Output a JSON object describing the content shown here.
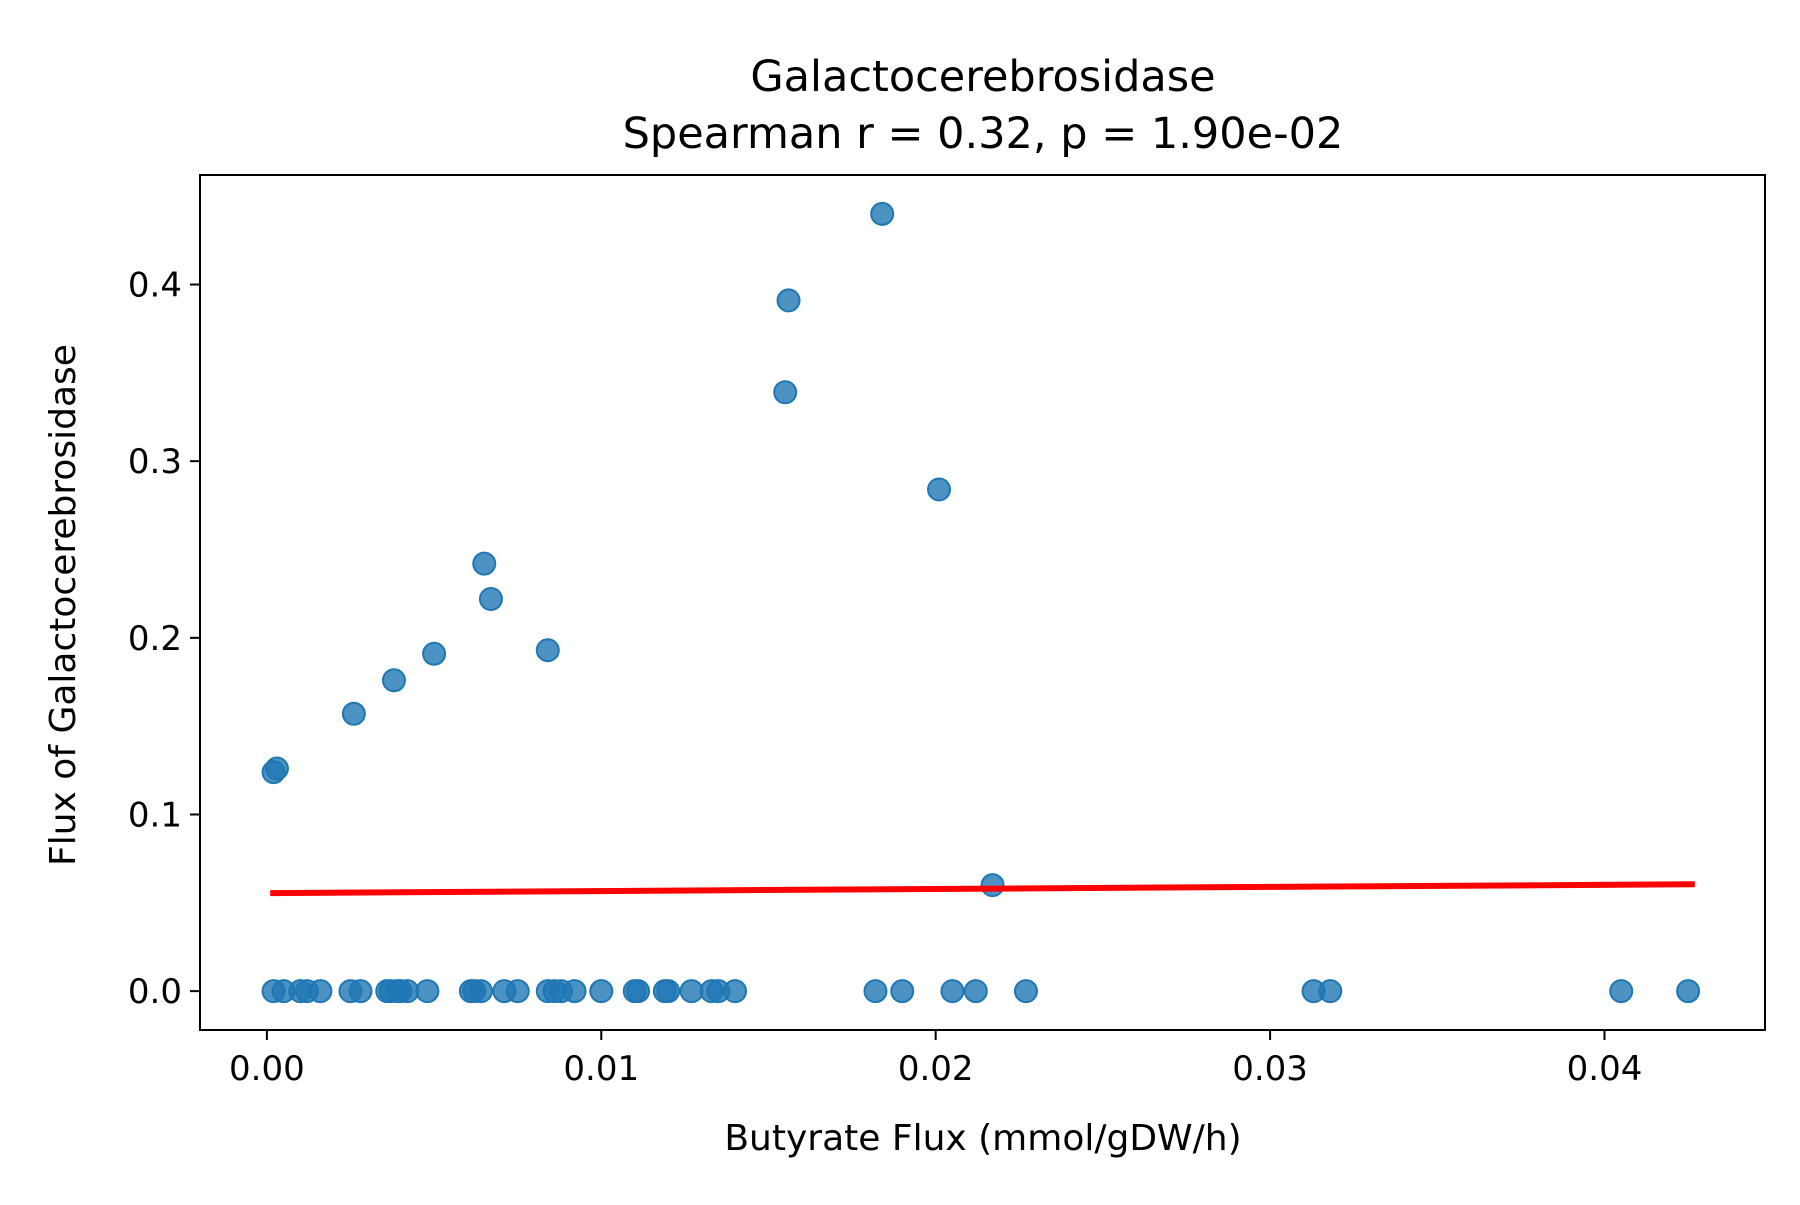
{
  "chart_data": {
    "type": "scatter",
    "title": "Galactocerebrosidase",
    "subtitle": "Spearman r = 0.32, p = 1.90e-02",
    "xlabel": "Butyrate Flux (mmol/gDW/h)",
    "ylabel": "Flux of Galactocerebrosidase",
    "xlim": [
      -0.002,
      0.0448
    ],
    "ylim": [
      -0.022,
      0.462
    ],
    "xticks": [
      0.0,
      0.01,
      0.02,
      0.03,
      0.04
    ],
    "xtick_labels": [
      "0.00",
      "0.01",
      "0.02",
      "0.03",
      "0.04"
    ],
    "yticks": [
      0.0,
      0.1,
      0.2,
      0.3,
      0.4
    ],
    "ytick_labels": [
      "0.0",
      "0.1",
      "0.2",
      "0.3",
      "0.4"
    ],
    "grid": false,
    "legend": false,
    "point_color": "#1f77b4",
    "line_color": "#ff0000",
    "points": [
      {
        "x": 0.0002,
        "y": 0.124
      },
      {
        "x": 0.0003,
        "y": 0.126
      },
      {
        "x": 0.0026,
        "y": 0.157
      },
      {
        "x": 0.0038,
        "y": 0.176
      },
      {
        "x": 0.005,
        "y": 0.191
      },
      {
        "x": 0.0065,
        "y": 0.242
      },
      {
        "x": 0.0067,
        "y": 0.222
      },
      {
        "x": 0.0084,
        "y": 0.193
      },
      {
        "x": 0.0155,
        "y": 0.339
      },
      {
        "x": 0.0156,
        "y": 0.391
      },
      {
        "x": 0.0184,
        "y": 0.44
      },
      {
        "x": 0.0201,
        "y": 0.284
      },
      {
        "x": 0.0217,
        "y": 0.06
      },
      {
        "x": 0.0002,
        "y": 0.0
      },
      {
        "x": 0.0005,
        "y": 0.0
      },
      {
        "x": 0.001,
        "y": 0.0
      },
      {
        "x": 0.0012,
        "y": 0.0
      },
      {
        "x": 0.0016,
        "y": 0.0
      },
      {
        "x": 0.0025,
        "y": 0.0
      },
      {
        "x": 0.0028,
        "y": 0.0
      },
      {
        "x": 0.0036,
        "y": 0.0
      },
      {
        "x": 0.0037,
        "y": 0.0
      },
      {
        "x": 0.0039,
        "y": 0.0
      },
      {
        "x": 0.004,
        "y": 0.0
      },
      {
        "x": 0.0042,
        "y": 0.0
      },
      {
        "x": 0.0048,
        "y": 0.0
      },
      {
        "x": 0.0061,
        "y": 0.0
      },
      {
        "x": 0.0062,
        "y": 0.0
      },
      {
        "x": 0.0064,
        "y": 0.0
      },
      {
        "x": 0.0071,
        "y": 0.0
      },
      {
        "x": 0.0075,
        "y": 0.0
      },
      {
        "x": 0.0084,
        "y": 0.0
      },
      {
        "x": 0.0086,
        "y": 0.0
      },
      {
        "x": 0.0088,
        "y": 0.0
      },
      {
        "x": 0.0092,
        "y": 0.0
      },
      {
        "x": 0.01,
        "y": 0.0
      },
      {
        "x": 0.011,
        "y": 0.0
      },
      {
        "x": 0.0111,
        "y": 0.0
      },
      {
        "x": 0.0119,
        "y": 0.0
      },
      {
        "x": 0.012,
        "y": 0.0
      },
      {
        "x": 0.0127,
        "y": 0.0
      },
      {
        "x": 0.0133,
        "y": 0.0
      },
      {
        "x": 0.0135,
        "y": 0.0
      },
      {
        "x": 0.014,
        "y": 0.0
      },
      {
        "x": 0.0182,
        "y": 0.0
      },
      {
        "x": 0.019,
        "y": 0.0
      },
      {
        "x": 0.0205,
        "y": 0.0
      },
      {
        "x": 0.0212,
        "y": 0.0
      },
      {
        "x": 0.0227,
        "y": 0.0
      },
      {
        "x": 0.0313,
        "y": 0.0
      },
      {
        "x": 0.0318,
        "y": 0.0
      },
      {
        "x": 0.0405,
        "y": 0.0
      },
      {
        "x": 0.0425,
        "y": 0.0
      }
    ],
    "trend_line": {
      "x": [
        0.0001,
        0.0427
      ],
      "y": [
        0.0555,
        0.0605
      ]
    }
  }
}
